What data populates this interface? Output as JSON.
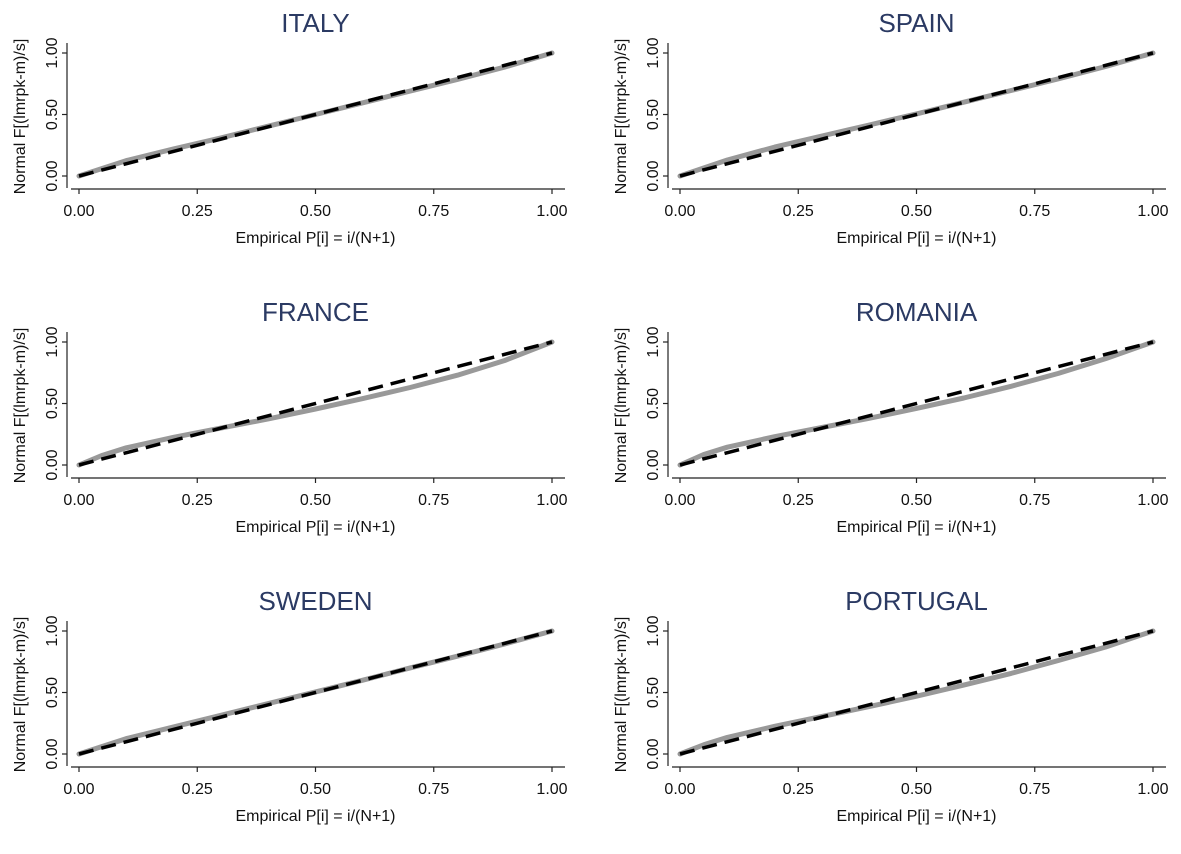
{
  "chart_data": [
    {
      "type": "line",
      "title": "ITALY",
      "xlabel": "Empirical P[i] = i/(N+1)",
      "ylabel": "Normal F[(lmrpk-m)/s]",
      "xlim": [
        0,
        1
      ],
      "ylim": [
        0,
        1
      ],
      "xticks": [
        "0.00",
        "0.25",
        "0.50",
        "0.75",
        "1.00"
      ],
      "yticks": [
        "0.00",
        "0.50",
        "1.00"
      ],
      "grid": false,
      "legend": "none",
      "series": [
        {
          "style": "solid-gray",
          "x": [
            0,
            0.1,
            0.2,
            0.3,
            0.4,
            0.5,
            0.6,
            0.7,
            0.8,
            0.9,
            1.0
          ],
          "y": [
            0,
            0.125,
            0.22,
            0.31,
            0.405,
            0.5,
            0.595,
            0.69,
            0.785,
            0.885,
            1.0
          ]
        },
        {
          "style": "dashed-black",
          "x": [
            0,
            1
          ],
          "y": [
            0,
            1
          ]
        }
      ]
    },
    {
      "type": "line",
      "title": "SPAIN",
      "xlabel": "Empirical P[i] = i/(N+1)",
      "ylabel": "Normal F[(lmrpk-m)/s]",
      "xlim": [
        0,
        1
      ],
      "ylim": [
        0,
        1
      ],
      "xticks": [
        "0.00",
        "0.25",
        "0.50",
        "0.75",
        "1.00"
      ],
      "yticks": [
        "0.00",
        "0.50",
        "1.00"
      ],
      "grid": false,
      "legend": "none",
      "series": [
        {
          "style": "solid-gray",
          "x": [
            0,
            0.1,
            0.2,
            0.3,
            0.4,
            0.5,
            0.6,
            0.7,
            0.8,
            0.9,
            1.0
          ],
          "y": [
            0,
            0.13,
            0.235,
            0.325,
            0.415,
            0.505,
            0.6,
            0.695,
            0.79,
            0.89,
            1.0
          ]
        },
        {
          "style": "dashed-black",
          "x": [
            0,
            1
          ],
          "y": [
            0,
            1
          ]
        }
      ]
    },
    {
      "type": "line",
      "title": "FRANCE",
      "xlabel": "Empirical P[i] = i/(N+1)",
      "ylabel": "Normal F[(lmrpk-m)/s]",
      "xlim": [
        0,
        1
      ],
      "ylim": [
        0,
        1
      ],
      "xticks": [
        "0.00",
        "0.25",
        "0.50",
        "0.75",
        "1.00"
      ],
      "yticks": [
        "0.00",
        "0.50",
        "1.00"
      ],
      "grid": false,
      "legend": "none",
      "series": [
        {
          "style": "solid-gray",
          "x": [
            0,
            0.05,
            0.1,
            0.2,
            0.3,
            0.4,
            0.5,
            0.6,
            0.7,
            0.8,
            0.9,
            1.0
          ],
          "y": [
            0,
            0.08,
            0.14,
            0.225,
            0.3,
            0.375,
            0.455,
            0.54,
            0.63,
            0.73,
            0.85,
            1.0
          ]
        },
        {
          "style": "dashed-black",
          "x": [
            0,
            1
          ],
          "y": [
            0,
            1
          ]
        }
      ]
    },
    {
      "type": "line",
      "title": "ROMANIA",
      "xlabel": "Empirical P[i] = i/(N+1)",
      "ylabel": "Normal F[(lmrpk-m)/s]",
      "xlim": [
        0,
        1
      ],
      "ylim": [
        0,
        1
      ],
      "xticks": [
        "0.00",
        "0.25",
        "0.50",
        "0.75",
        "1.00"
      ],
      "yticks": [
        "0.00",
        "0.50",
        "1.00"
      ],
      "grid": false,
      "legend": "none",
      "series": [
        {
          "style": "solid-gray",
          "x": [
            0,
            0.05,
            0.1,
            0.2,
            0.3,
            0.4,
            0.5,
            0.6,
            0.7,
            0.8,
            0.9,
            1.0
          ],
          "y": [
            0,
            0.085,
            0.145,
            0.23,
            0.305,
            0.38,
            0.46,
            0.545,
            0.64,
            0.745,
            0.865,
            1.0
          ]
        },
        {
          "style": "dashed-black",
          "x": [
            0,
            1
          ],
          "y": [
            0,
            1
          ]
        }
      ]
    },
    {
      "type": "line",
      "title": "SWEDEN",
      "xlabel": "Empirical P[i] = i/(N+1)",
      "ylabel": "Normal F[(lmrpk-m)/s]",
      "xlim": [
        0,
        1
      ],
      "ylim": [
        0,
        1
      ],
      "xticks": [
        "0.00",
        "0.25",
        "0.50",
        "0.75",
        "1.00"
      ],
      "yticks": [
        "0.00",
        "0.50",
        "1.00"
      ],
      "grid": false,
      "legend": "none",
      "series": [
        {
          "style": "solid-gray",
          "x": [
            0,
            0.1,
            0.2,
            0.3,
            0.4,
            0.5,
            0.6,
            0.7,
            0.8,
            0.9,
            1.0
          ],
          "y": [
            0,
            0.125,
            0.22,
            0.315,
            0.41,
            0.505,
            0.6,
            0.7,
            0.795,
            0.895,
            1.0
          ]
        },
        {
          "style": "dashed-black",
          "x": [
            0,
            1
          ],
          "y": [
            0,
            1
          ]
        }
      ]
    },
    {
      "type": "line",
      "title": "PORTUGAL",
      "xlabel": "Empirical P[i] = i/(N+1)",
      "ylabel": "Normal F[(lmrpk-m)/s]",
      "xlim": [
        0,
        1
      ],
      "ylim": [
        0,
        1
      ],
      "xticks": [
        "0.00",
        "0.25",
        "0.50",
        "0.75",
        "1.00"
      ],
      "yticks": [
        "0.00",
        "0.50",
        "1.00"
      ],
      "grid": false,
      "legend": "none",
      "series": [
        {
          "style": "solid-gray",
          "x": [
            0,
            0.05,
            0.1,
            0.2,
            0.3,
            0.4,
            0.5,
            0.6,
            0.7,
            0.8,
            0.9,
            1.0
          ],
          "y": [
            0,
            0.075,
            0.135,
            0.225,
            0.305,
            0.385,
            0.47,
            0.56,
            0.655,
            0.76,
            0.87,
            1.0
          ]
        },
        {
          "style": "dashed-black",
          "x": [
            0,
            1
          ],
          "y": [
            0,
            1
          ]
        }
      ]
    }
  ],
  "colors": {
    "title": "#2b3a63",
    "empirical_line": "#999999",
    "reference_line": "#000000",
    "axis": "#222222"
  }
}
